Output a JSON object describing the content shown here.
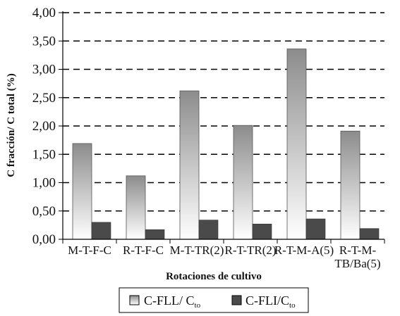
{
  "chart_data": {
    "type": "bar",
    "xlabel": "Rotaciones de cultivo",
    "ylabel": "C fracción/ C total (%)",
    "ylim": [
      0,
      4
    ],
    "yticks": [
      "0,00",
      "0,50",
      "1,00",
      "1,50",
      "2,00",
      "2,50",
      "3,00",
      "3,50",
      "4,00"
    ],
    "categories": [
      [
        "M-T-F-C"
      ],
      [
        "R-T-F-C"
      ],
      [
        "M-T-TR(2)"
      ],
      [
        "R-T-TR(2)"
      ],
      [
        "R-T-M-A(5)"
      ],
      [
        "R-T-M-",
        "TB/Ba(5)"
      ]
    ],
    "series": [
      {
        "name": "C-FLL/ C_to",
        "legend_main": "C-FLL/ C",
        "legend_sub": "to",
        "style": "gradient",
        "values": [
          1.69,
          1.12,
          2.62,
          2.01,
          3.36,
          1.91
        ]
      },
      {
        "name": "C-FLI/C_to",
        "legend_main": "C-FLI/C",
        "legend_sub": "to",
        "style": "solid",
        "values": [
          0.3,
          0.17,
          0.34,
          0.27,
          0.36,
          0.19
        ]
      }
    ],
    "grid": "dashed horizontal",
    "legend_position": "bottom",
    "colors": {
      "dark": "#4a4a4a",
      "gradient_top": "#8c8c8c",
      "gradient_bottom": "#ffffff",
      "grid": "#000000"
    }
  }
}
